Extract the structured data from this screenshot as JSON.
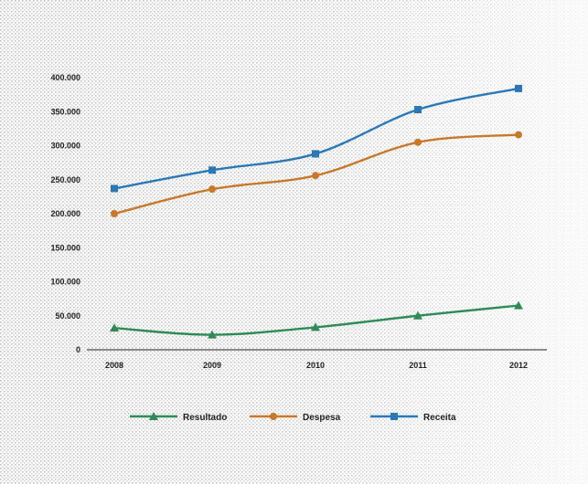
{
  "chart_data": {
    "type": "line",
    "title": "",
    "xlabel": "",
    "ylabel": "",
    "categories": [
      "2008",
      "2009",
      "2010",
      "2011",
      "2012"
    ],
    "ylim": [
      0,
      400000
    ],
    "yticks": [
      0,
      50000,
      100000,
      150000,
      200000,
      250000,
      300000,
      350000,
      400000
    ],
    "ytick_labels": [
      "0",
      "50.000",
      "100.000",
      "150.000",
      "200.000",
      "250.000",
      "300.000",
      "350.000",
      "400.000"
    ],
    "xtick_labels": [
      "2008",
      "2009",
      "2010",
      "2011",
      "2012"
    ],
    "grid": false,
    "legend_position": "bottom",
    "series": [
      {
        "name": "Resultado",
        "color": "#2e8b57",
        "marker": "triangle",
        "values": [
          32000,
          22000,
          33000,
          50000,
          65000
        ]
      },
      {
        "name": "Despesa",
        "color": "#c8782a",
        "marker": "circle",
        "values": [
          200000,
          236000,
          256000,
          305000,
          316000
        ]
      },
      {
        "name": "Receita",
        "color": "#2a78b8",
        "marker": "square",
        "values": [
          237000,
          264000,
          288000,
          353000,
          384000
        ]
      }
    ]
  }
}
